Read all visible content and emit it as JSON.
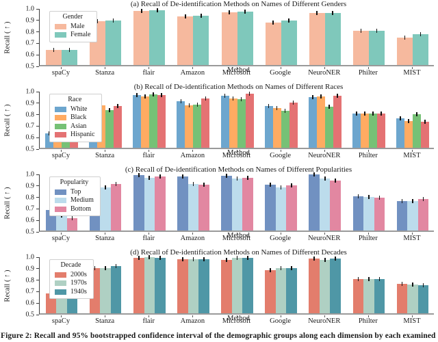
{
  "figure": {
    "caption": "Figure 2: Recall and 95% bootstrapped confidence interval of the demographic groups along each dimension by each examined"
  },
  "chart_data": [
    {
      "id": "a",
      "type": "bar",
      "title": "(a) Recall of De-identification Methods on Names of Different Genders",
      "legend_title": "Gender",
      "legend_position": "upper-left",
      "xlabel": "Method",
      "ylabel": "Recall ( ↑ )",
      "ylim": [
        0.5,
        1.0
      ],
      "yticks": [
        "1.0",
        "0.9",
        "0.8",
        "0.7",
        "0.6",
        "0.5"
      ],
      "grid": false,
      "error_bars": "95% bootstrapped confidence interval, approx ±0.01",
      "categories": [
        "spaCy",
        "Stanza",
        "flair",
        "Amazon",
        "Microsoft",
        "Google",
        "NeuroNER",
        "Philter",
        "MIST"
      ],
      "series": [
        {
          "name": "Male",
          "color": "#f6b99e",
          "values": [
            0.63,
            0.88,
            0.97,
            0.92,
            0.96,
            0.87,
            0.955,
            0.8,
            0.74
          ]
        },
        {
          "name": "Female",
          "color": "#7fc8bb",
          "values": [
            0.632,
            0.885,
            0.975,
            0.93,
            0.965,
            0.885,
            0.955,
            0.8,
            0.77
          ]
        }
      ]
    },
    {
      "id": "b",
      "type": "bar",
      "title": "(b) Recall of De-identification Methods on Names of Different Races",
      "legend_title": "Race",
      "legend_position": "upper-left",
      "xlabel": "Method",
      "ylabel": "Recall ( ↑ )",
      "ylim": [
        0.5,
        1.0
      ],
      "yticks": [
        "1.0",
        "0.9",
        "0.8",
        "0.7",
        "0.6",
        "0.5"
      ],
      "grid": false,
      "error_bars": "95% bootstrapped confidence interval, approx ±0.01",
      "categories": [
        "spaCy",
        "Stanza",
        "flair",
        "Amazon",
        "Microsoft",
        "Google",
        "NeuroNER",
        "Philter",
        "MIST"
      ],
      "series": [
        {
          "name": "White",
          "color": "#6da6ce",
          "values": [
            0.625,
            0.875,
            0.96,
            0.905,
            0.95,
            0.865,
            0.94,
            0.8,
            0.755
          ]
        },
        {
          "name": "Black",
          "color": "#ffab62",
          "values": [
            0.595,
            0.87,
            0.945,
            0.87,
            0.93,
            0.845,
            0.945,
            0.8,
            0.73
          ]
        },
        {
          "name": "Asian",
          "color": "#76c176",
          "values": [
            0.585,
            0.83,
            0.965,
            0.875,
            0.925,
            0.82,
            0.855,
            0.8,
            0.79
          ]
        },
        {
          "name": "Hispanic",
          "color": "#e47273",
          "values": [
            0.59,
            0.865,
            0.96,
            0.93,
            0.97,
            0.89,
            0.955,
            0.8,
            0.725
          ]
        }
      ]
    },
    {
      "id": "c",
      "type": "bar",
      "title": "(c) Recall of De-identification Methods on Names of Different Popularities",
      "legend_title": "Popularity",
      "legend_position": "upper-left",
      "xlabel": "Method",
      "ylabel": "Recall ( ↑ )",
      "ylim": [
        0.5,
        1.0
      ],
      "yticks": [
        "1.0",
        "0.9",
        "0.8",
        "0.7",
        "0.6",
        "0.5"
      ],
      "grid": false,
      "error_bars": "95% bootstrapped confidence interval, approx ±0.01",
      "categories": [
        "spaCy",
        "Stanza",
        "flair",
        "Amazon",
        "Microsoft",
        "Google",
        "NeuroNER",
        "Philter",
        "MIST"
      ],
      "series": [
        {
          "name": "Top",
          "color": "#7191c1",
          "values": [
            0.68,
            0.895,
            0.985,
            0.97,
            0.975,
            0.9,
            0.99,
            0.795,
            0.755
          ]
        },
        {
          "name": "Medium",
          "color": "#bcdcec",
          "values": [
            0.63,
            0.875,
            0.96,
            0.905,
            0.955,
            0.875,
            0.95,
            0.79,
            0.755
          ]
        },
        {
          "name": "Bottom",
          "color": "#e287a1",
          "values": [
            0.607,
            0.905,
            0.97,
            0.9,
            0.96,
            0.89,
            0.935,
            0.785,
            0.775
          ]
        }
      ]
    },
    {
      "id": "d",
      "type": "bar",
      "title": "(d) Recall of De-identification Methods on Names of Different Decades",
      "legend_title": "Decade",
      "legend_position": "upper-left",
      "xlabel": "Method",
      "ylabel": "Recall ( ↑ )",
      "ylim": [
        0.5,
        1.0
      ],
      "yticks": [
        "1.0",
        "0.9",
        "0.8",
        "0.7",
        "0.6",
        "0.5"
      ],
      "grid": false,
      "error_bars": "95% bootstrapped confidence interval, approx ±0.01",
      "categories": [
        "spaCy",
        "Stanza",
        "flair",
        "Amazon",
        "Microsoft",
        "Google",
        "NeuroNER",
        "Philter",
        "MIST"
      ],
      "series": [
        {
          "name": "2000s",
          "color": "#e37d6c",
          "values": [
            0.675,
            0.895,
            0.985,
            0.97,
            0.965,
            0.875,
            0.975,
            0.8,
            0.755
          ]
        },
        {
          "name": "1970s",
          "color": "#afd0c3",
          "values": [
            0.675,
            0.895,
            0.99,
            0.97,
            0.98,
            0.895,
            0.965,
            0.795,
            0.75
          ]
        },
        {
          "name": "1940s",
          "color": "#4f97a6",
          "values": [
            0.663,
            0.91,
            0.985,
            0.968,
            0.98,
            0.893,
            0.975,
            0.795,
            0.745
          ]
        }
      ]
    }
  ]
}
